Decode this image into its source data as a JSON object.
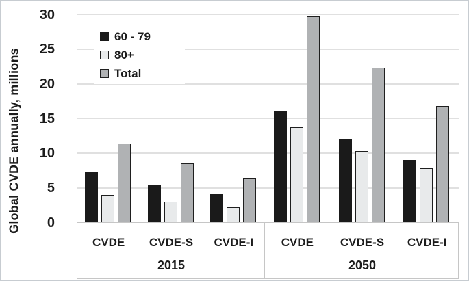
{
  "chart_data": {
    "type": "bar",
    "title": "",
    "ylabel": "Global CVDE annually, millions",
    "xlabel": "",
    "ylim": [
      0,
      30
    ],
    "yticks": [
      0,
      5,
      10,
      15,
      20,
      25,
      30
    ],
    "grid": true,
    "legend_position": "upper-left",
    "groups": [
      {
        "label": "2015",
        "categories": [
          "CVDE",
          "CVDE-S",
          "CVDE-I"
        ]
      },
      {
        "label": "2050",
        "categories": [
          "CVDE",
          "CVDE-S",
          "CVDE-I"
        ]
      }
    ],
    "category_order": [
      "2015 CVDE",
      "2015 CVDE-S",
      "2015 CVDE-I",
      "2050 CVDE",
      "2050 CVDE-S",
      "2050 CVDE-I"
    ],
    "series": [
      {
        "name": "60 - 79",
        "color": "#1a1a1a",
        "border": "#1a1a1a",
        "values": [
          7.3,
          5.5,
          4.1,
          16.0,
          12.0,
          9.0
        ]
      },
      {
        "name": "80+",
        "color": "#e8eaeb",
        "border": "#1f1f1f",
        "values": [
          4.0,
          3.0,
          2.2,
          13.8,
          10.3,
          7.8
        ]
      },
      {
        "name": "Total",
        "color": "#b0b2b4",
        "border": "#1f1f1f",
        "values": [
          11.4,
          8.5,
          6.4,
          29.8,
          22.4,
          16.8
        ]
      }
    ],
    "colors": {
      "gridline": "#e0e0e0",
      "axis_box_border": "#c6c6c6",
      "text": "#1c1c1c",
      "figure_border": "#c7ccd1",
      "background": "#ffffff"
    }
  }
}
